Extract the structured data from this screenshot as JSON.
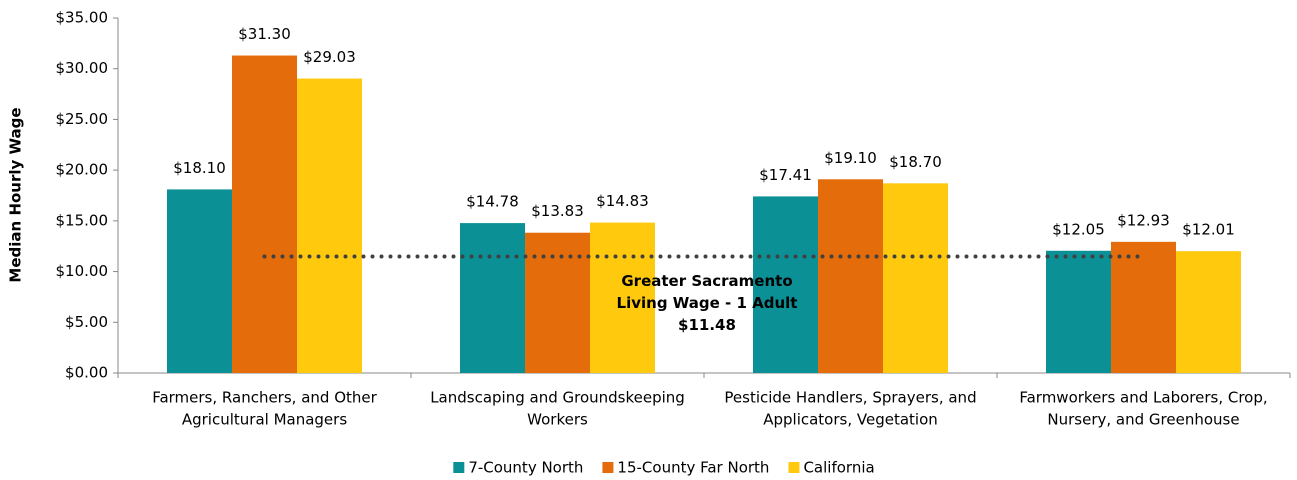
{
  "chart_data": {
    "type": "bar",
    "y_label": "Median Hourly Wage",
    "categories": [
      [
        "Farmers, Ranchers, and Other",
        "Agricultural Managers"
      ],
      [
        "Landscaping and Groundskeeping",
        "Workers"
      ],
      [
        "Pesticide Handlers, Sprayers, and",
        "Applicators, Vegetation"
      ],
      [
        "Farmworkers and Laborers, Crop,",
        "Nursery, and Greenhouse"
      ]
    ],
    "series": [
      {
        "name": "7-County North",
        "color": "#0b9096",
        "values": [
          18.1,
          14.78,
          17.41,
          12.05
        ],
        "value_labels": [
          "$18.10",
          "$14.78",
          "$17.41",
          "$12.05"
        ]
      },
      {
        "name": "15-County Far North",
        "color": "#e46c0a",
        "values": [
          31.3,
          13.83,
          19.1,
          12.93
        ],
        "value_labels": [
          "$31.30",
          "$13.83",
          "$19.10",
          "$12.93"
        ]
      },
      {
        "name": "California",
        "color": "#ffc90e",
        "values": [
          29.03,
          14.83,
          18.7,
          12.01
        ],
        "value_labels": [
          "$29.03",
          "$14.83",
          "$18.70",
          "$12.01"
        ]
      }
    ],
    "ylim": [
      0,
      35
    ],
    "yticks": [
      {
        "value": 0,
        "label": "$0.00"
      },
      {
        "value": 5,
        "label": "$5.00"
      },
      {
        "value": 10,
        "label": "$10.00"
      },
      {
        "value": 15,
        "label": "$15.00"
      },
      {
        "value": 20,
        "label": "$20.00"
      },
      {
        "value": 25,
        "label": "$25.00"
      },
      {
        "value": 30,
        "label": "$30.00"
      },
      {
        "value": 35,
        "label": "$35.00"
      }
    ],
    "reference_line": {
      "value": 11.48,
      "label": [
        "Greater Sacramento",
        "Living Wage - 1 Adult"
      ],
      "value_label": "$11.48",
      "color": "#404040"
    },
    "legend": "bottom"
  }
}
